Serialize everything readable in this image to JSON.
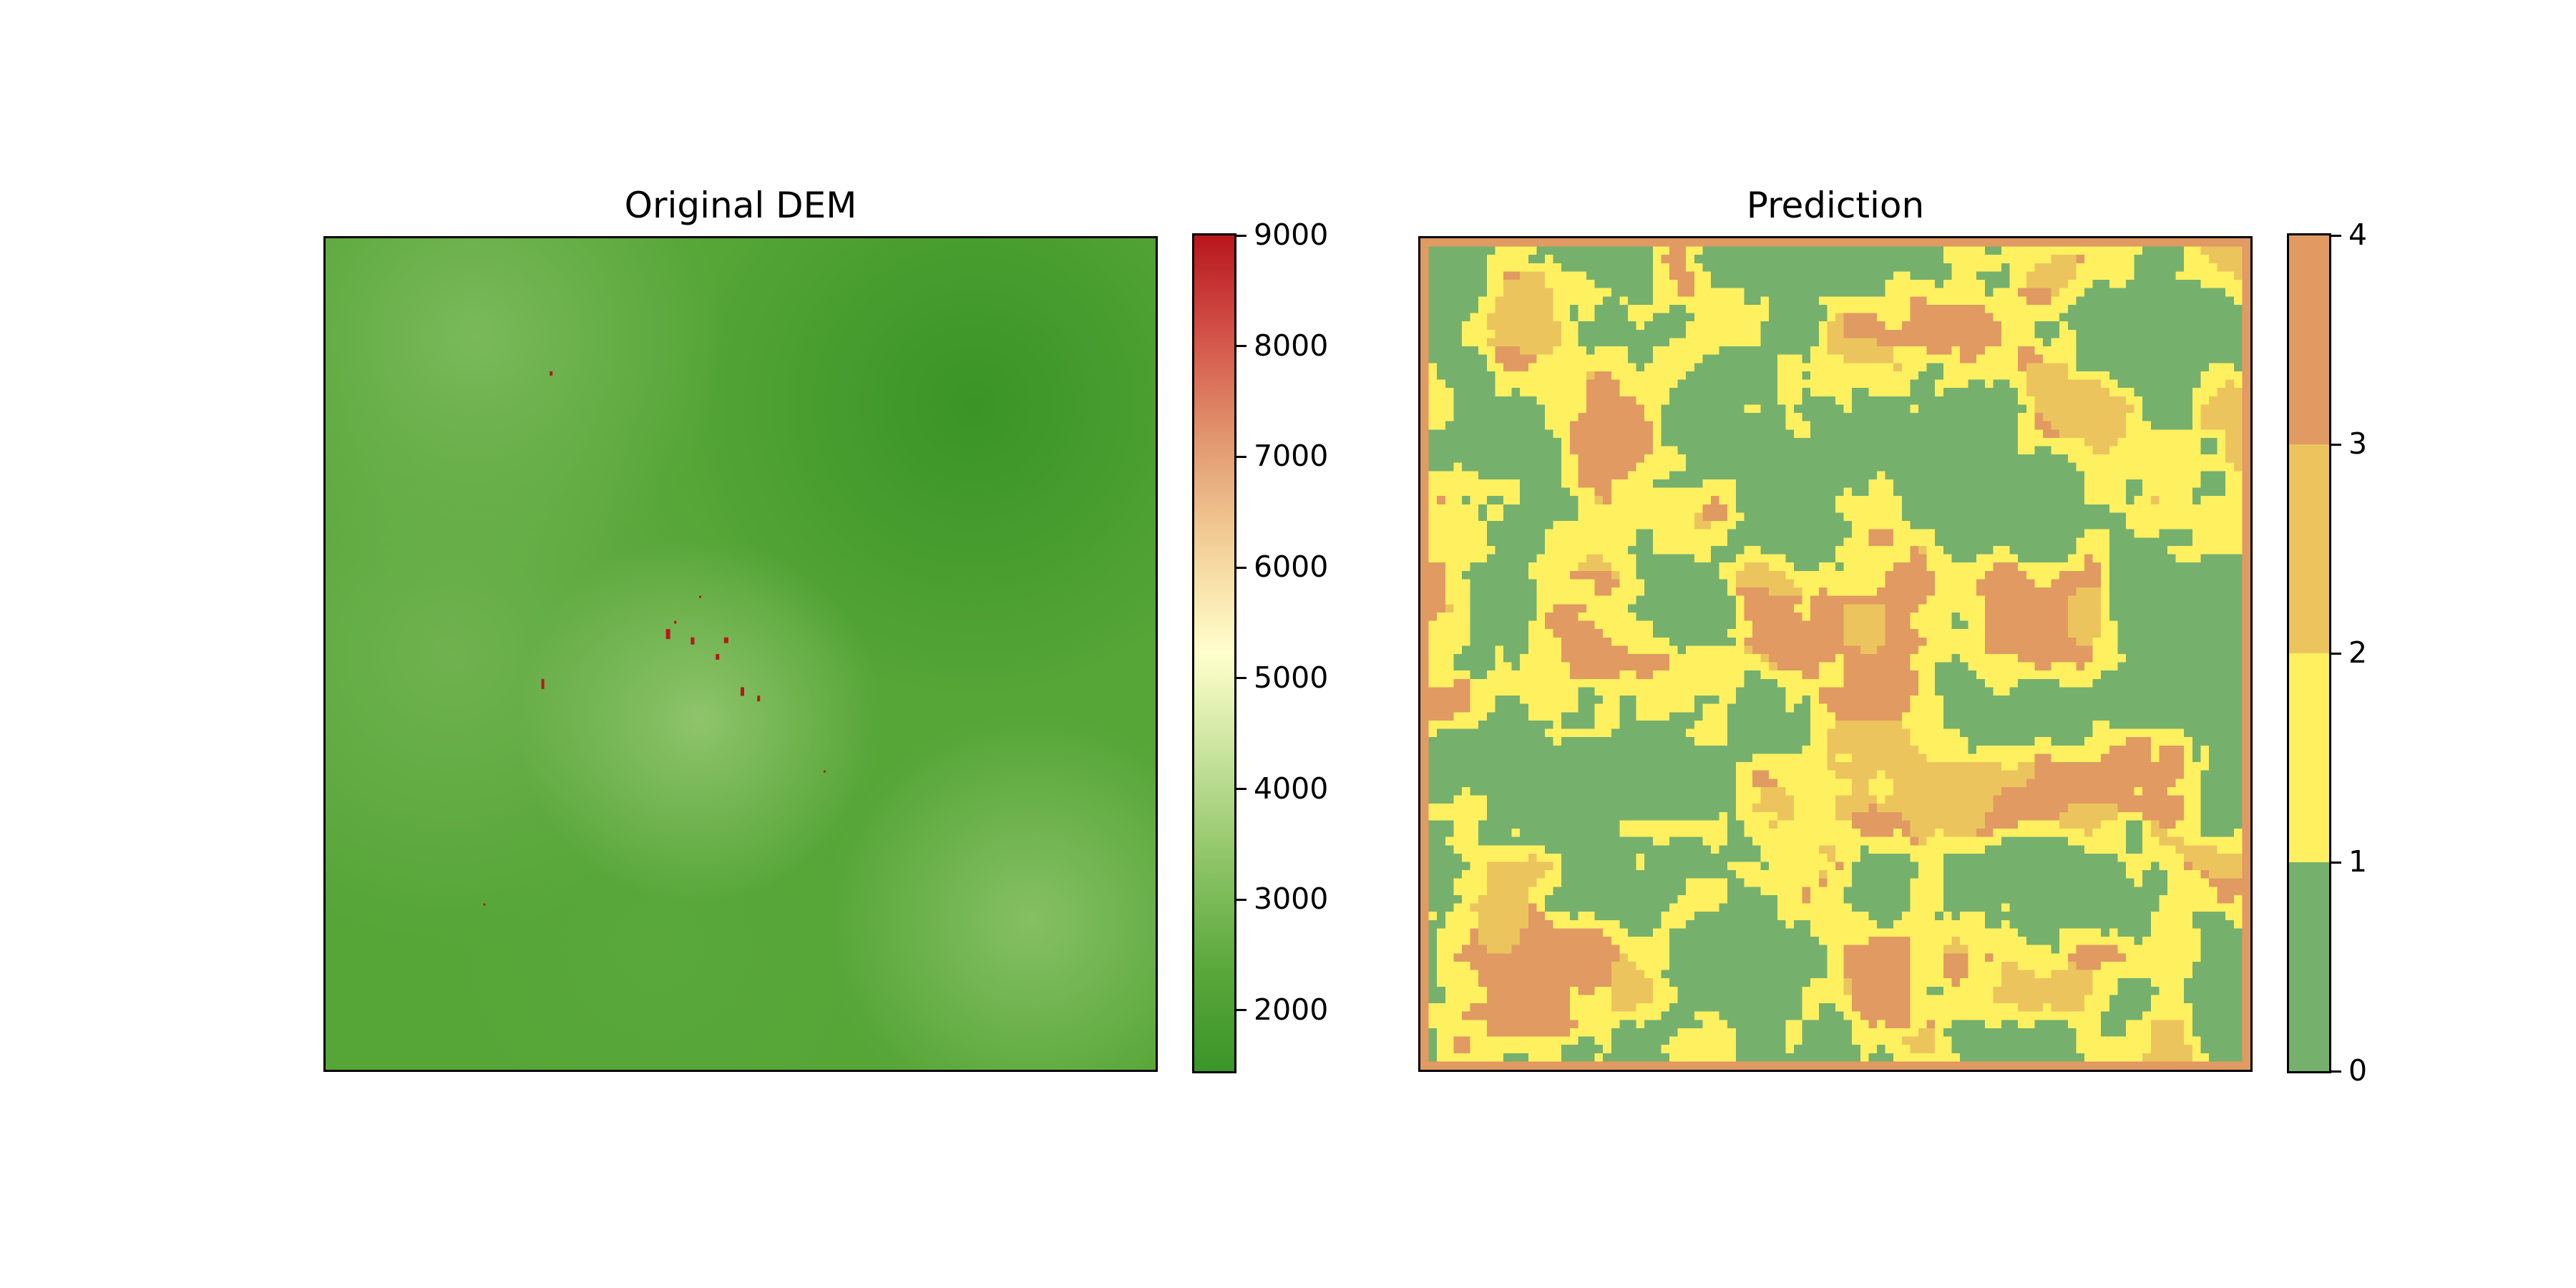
{
  "colors": {
    "dem_colormap": [
      "#3a9528",
      "#5ba83c",
      "#8dc466",
      "#c6e29b",
      "#ffffcc",
      "#f4d29a",
      "#e29a70",
      "#d4554a",
      "#b8161d"
    ],
    "class_colors": [
      "#76b06d",
      "#fff060",
      "#ecc45e",
      "#e09a62"
    ],
    "frame": "#000000"
  },
  "chart_data": [
    {
      "type": "heatmap",
      "title": "Original DEM",
      "xlabel": "",
      "ylabel": "",
      "axes_visible": false,
      "colorbar": {
        "range": [
          1450,
          9000
        ],
        "ticks": [
          2000,
          3000,
          4000,
          5000,
          6000,
          7000,
          8000,
          9000
        ],
        "tick_labels": [
          "2000",
          "3000",
          "4000",
          "5000",
          "6000",
          "7000",
          "8000",
          "9000"
        ],
        "colormap": "green-yellow-red"
      },
      "values_summary": {
        "dominant_range": [
          1500,
          3200
        ],
        "outlier_value": 9000
      }
    },
    {
      "type": "heatmap",
      "title": "Prediction",
      "xlabel": "",
      "ylabel": "",
      "axes_visible": false,
      "grid_size": [
        100,
        100
      ],
      "classes": [
        0,
        1,
        2,
        3
      ],
      "colorbar": {
        "range": [
          0,
          4
        ],
        "ticks": [
          0,
          1,
          2,
          3,
          4
        ],
        "tick_labels": [
          "0",
          "1",
          "2",
          "3",
          "4"
        ],
        "colormap": "discrete-4"
      }
    }
  ]
}
